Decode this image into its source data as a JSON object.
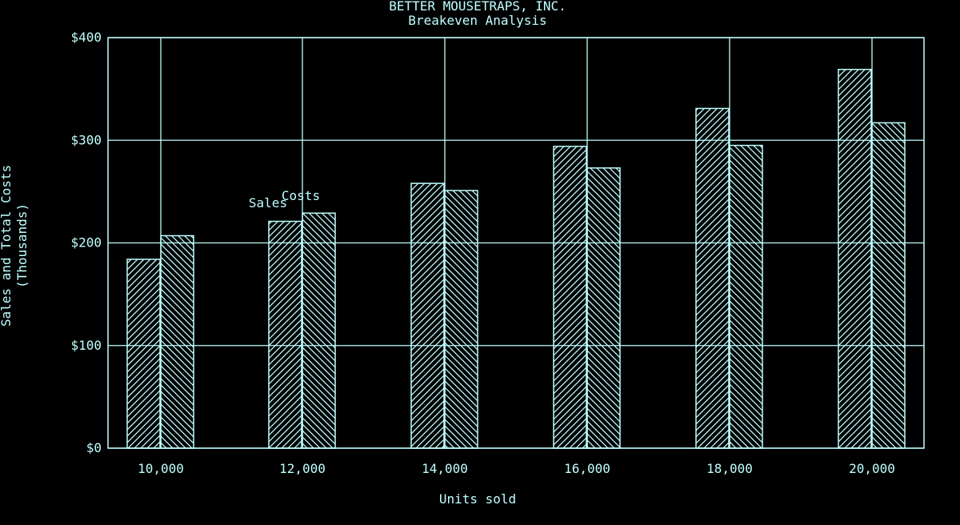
{
  "chart_data": {
    "type": "bar",
    "title": "BETTER MOUSETRAPS, INC.",
    "subtitle": "Breakeven Analysis",
    "xlabel": "Units sold",
    "ylabel": "Sales and Total Costs",
    "ylabel2": "(Thousands)",
    "categories": [
      "10,000",
      "12,000",
      "14,000",
      "16,000",
      "18,000",
      "20,000"
    ],
    "series": [
      {
        "name": "Sales",
        "values": [
          184,
          221,
          258,
          294,
          331,
          369
        ]
      },
      {
        "name": "Costs",
        "values": [
          207,
          229,
          251,
          273,
          295,
          317
        ]
      }
    ],
    "ylim": [
      0,
      400
    ],
    "yticks": [
      "$0",
      "$100",
      "$200",
      "$300",
      "$400"
    ],
    "grid": true,
    "colors": {
      "background": "#000000",
      "foreground": "#bfffff"
    }
  }
}
